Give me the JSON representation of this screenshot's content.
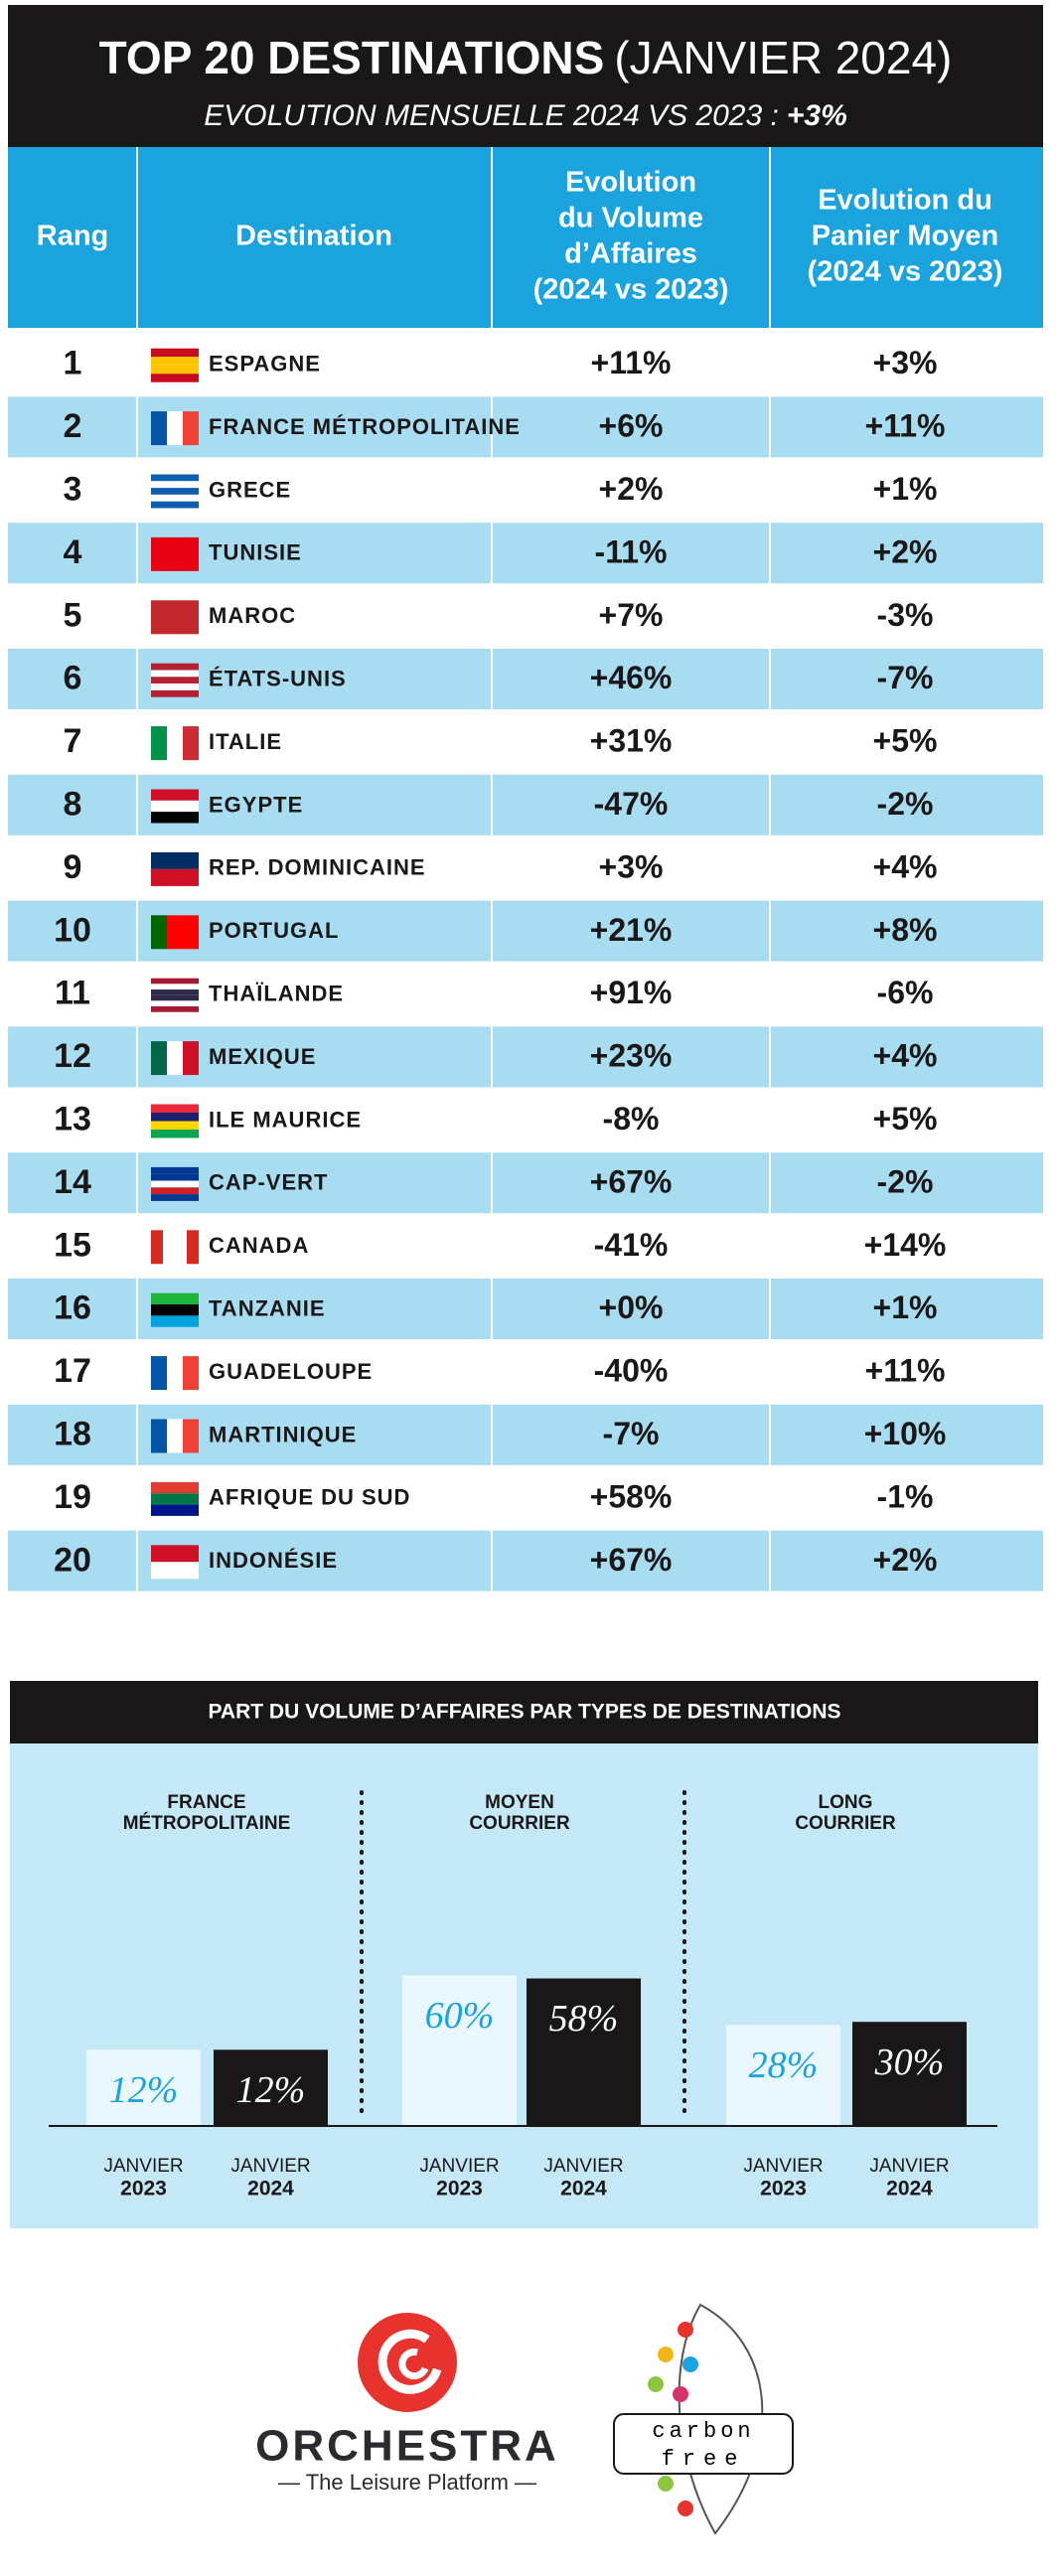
{
  "header": {
    "title": "TOP 20 DESTINATIONS",
    "title_suffix": "(JANVIER 2024)",
    "subtitle": "EVOLUTION MENSUELLE 2024 VS 2023 :",
    "subtitle_value": "+3%"
  },
  "table": {
    "columns": [
      [
        "Rang"
      ],
      [
        "Destination"
      ],
      [
        "Evolution",
        "du Volume",
        "d’Affaires",
        "(2024 vs 2023)"
      ],
      [
        "Evolution du",
        "Panier Moyen",
        "(2024 vs 2023)"
      ]
    ],
    "rows": [
      [
        "1",
        "ESPAGNE",
        "+11%",
        "+3%"
      ],
      [
        "2",
        "FRANCE MÉTROPOLITAINE",
        "+6%",
        "+11%"
      ],
      [
        "3",
        "GRECE",
        "+2%",
        "+1%"
      ],
      [
        "4",
        "TUNISIE",
        "-11%",
        "+2%"
      ],
      [
        "5",
        "MAROC",
        "+7%",
        "-3%"
      ],
      [
        "6",
        "ÉTATS-UNIS",
        "+46%",
        "-7%"
      ],
      [
        "7",
        "ITALIE",
        "+31%",
        "+5%"
      ],
      [
        "8",
        "EGYPTE",
        "-47%",
        "-2%"
      ],
      [
        "9",
        "REP. DOMINICAINE",
        "+3%",
        "+4%"
      ],
      [
        "10",
        "PORTUGAL",
        "+21%",
        "+8%"
      ],
      [
        "11",
        "THAÏLANDE",
        "+91%",
        "-6%"
      ],
      [
        "12",
        "MEXIQUE",
        "+23%",
        "+4%"
      ],
      [
        "13",
        "ILE MAURICE",
        "-8%",
        "+5%"
      ],
      [
        "14",
        "CAP-VERT",
        "+67%",
        "-2%"
      ],
      [
        "15",
        "CANADA",
        "-41%",
        "+14%"
      ],
      [
        "16",
        "TANZANIE",
        "+0%",
        "+1%"
      ],
      [
        "17",
        "GUADELOUPE",
        "-40%",
        "+11%"
      ],
      [
        "18",
        "MARTINIQUE",
        "-7%",
        "+10%"
      ],
      [
        "19",
        "AFRIQUE DU SUD",
        "+58%",
        "-1%"
      ],
      [
        "20",
        "INDONÉSIE",
        "+67%",
        "+2%"
      ]
    ]
  },
  "chart_data": {
    "type": "bar",
    "title": "PART DU VOLUME D’AFFAIRES PAR TYPES DE DESTINATIONS",
    "categories": [
      [
        "FRANCE",
        "MÉTROPOLITAINE"
      ],
      [
        "MOYEN",
        "COURRIER"
      ],
      [
        "LONG",
        "COURRIER"
      ]
    ],
    "series": [
      {
        "month": "JANVIER",
        "year": "2023",
        "color": "#eaf7fc",
        "label_color": "#1aa3dc",
        "values": [
          12,
          60,
          28
        ],
        "value_labels": [
          "12%",
          "60%",
          "28%"
        ]
      },
      {
        "month": "JANVIER",
        "year": "2024",
        "color": "#1a1718",
        "label_color": "#ffffff",
        "values": [
          12,
          58,
          30
        ],
        "value_labels": [
          "12%",
          "58%",
          "30%"
        ]
      }
    ]
  },
  "footer": {
    "brand": "ORCHESTRA",
    "tagline": "— The Leisure Platform —",
    "badge": [
      "carbon",
      "free"
    ]
  }
}
